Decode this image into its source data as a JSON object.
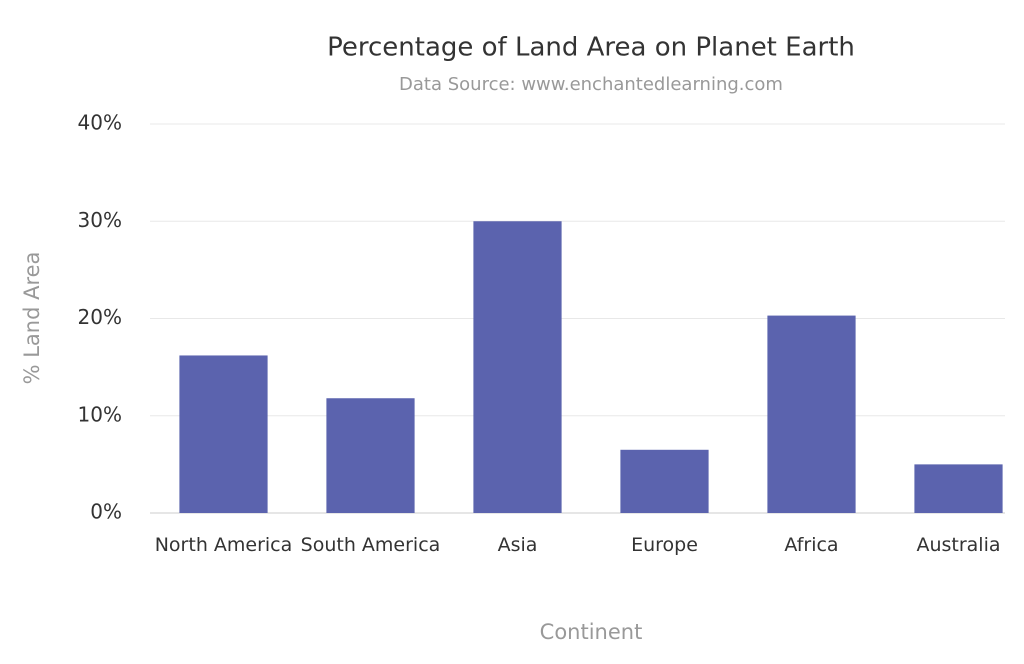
{
  "chart_data": {
    "type": "bar",
    "title": "Percentage of Land Area on Planet Earth",
    "subtitle": "Data Source: www.enchantedlearning.com",
    "x_label": "Continent",
    "y_label": "% Land Area",
    "categories": [
      "North America",
      "South America",
      "Asia",
      "Europe",
      "Africa",
      "Australia"
    ],
    "values": [
      16.2,
      11.8,
      30.0,
      6.5,
      20.3,
      5.0
    ],
    "color": "#5b63ae",
    "ylim": [
      0,
      40
    ],
    "yticks": [
      {
        "value": 0,
        "label": "0%"
      },
      {
        "value": 10,
        "label": "10%"
      },
      {
        "value": 20,
        "label": "20%"
      },
      {
        "value": 30,
        "label": "30%"
      },
      {
        "value": 40,
        "label": "40%"
      }
    ],
    "grid": true
  }
}
